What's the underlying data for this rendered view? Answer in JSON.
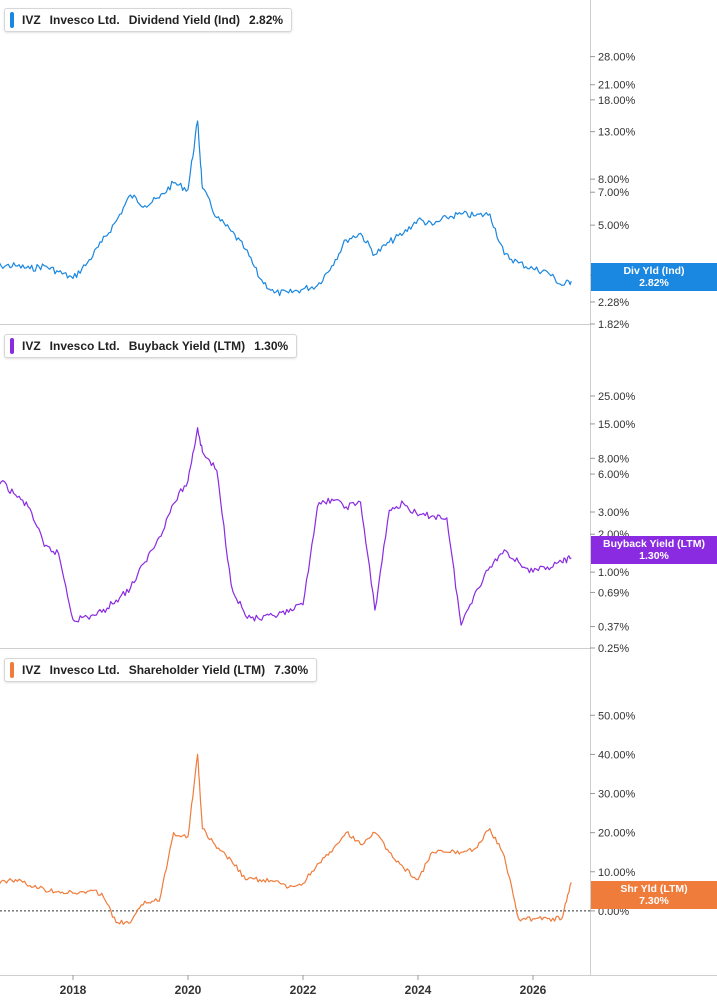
{
  "colors": {
    "div": "#1a87e0",
    "buyback": "#8a2be2",
    "shareholder": "#f07c3c"
  },
  "panels": [
    {
      "ticker": "IVZ",
      "company": "Invesco Ltd.",
      "metric": "Dividend Yield (Ind)",
      "value": "2.82%",
      "flag_line1": "Div Yld (Ind)",
      "flag_line2": "2.82%"
    },
    {
      "ticker": "IVZ",
      "company": "Invesco Ltd.",
      "metric": "Buyback Yield (LTM)",
      "value": "1.30%",
      "flag_line1": "Buyback Yield (LTM)",
      "flag_line2": "1.30%"
    },
    {
      "ticker": "IVZ",
      "company": "Invesco Ltd.",
      "metric": "Shareholder Yield (LTM)",
      "value": "7.30%",
      "flag_line1": "Shr Yld (LTM)",
      "flag_line2": "7.30%"
    }
  ],
  "chart_data": [
    {
      "type": "line",
      "title": "IVZ Invesco Ltd. Dividend Yield (Ind) 2.82%",
      "scale": "log",
      "ylim": [
        1.82,
        36
      ],
      "y_ticks": [
        "28.00%",
        "21.00%",
        "18.00%",
        "13.00%",
        "8.00%",
        "7.00%",
        "5.00%",
        "3.00%",
        "2.28%",
        "1.82%"
      ],
      "y_tick_values": [
        28,
        21,
        18,
        13,
        8,
        7,
        5,
        3,
        2.28,
        1.82
      ],
      "x": [
        "2016-07",
        "2016-10",
        "2017-01",
        "2017-04",
        "2017-07",
        "2017-10",
        "2018-01",
        "2018-04",
        "2018-07",
        "2018-10",
        "2019-01",
        "2019-04",
        "2019-07",
        "2019-10",
        "2020-01",
        "2020-03",
        "2020-04",
        "2020-07",
        "2020-10",
        "2021-01",
        "2021-04",
        "2021-07",
        "2021-10",
        "2022-01",
        "2022-04",
        "2022-07",
        "2022-10",
        "2023-01",
        "2023-04",
        "2023-07",
        "2023-10",
        "2024-01",
        "2024-04",
        "2024-07",
        "2024-10",
        "2025-01",
        "2025-04",
        "2025-07",
        "2025-10",
        "2026-01",
        "2026-04",
        "2026-07",
        "2026-09"
      ],
      "values": [
        3.4,
        3.3,
        3.3,
        3.2,
        3.3,
        3.1,
        2.9,
        3.4,
        4.2,
        5.2,
        6.8,
        6.1,
        6.6,
        7.7,
        7.2,
        14.5,
        7.3,
        5.4,
        4.7,
        3.9,
        2.9,
        2.5,
        2.5,
        2.6,
        2.7,
        3.3,
        4.3,
        4.6,
        3.7,
        4.2,
        4.6,
        5.3,
        5.0,
        5.4,
        5.6,
        5.5,
        5.6,
        3.7,
        3.4,
        3.2,
        3.1,
        2.7,
        2.82
      ],
      "series": [
        {
          "name": "Div Yld (Ind)",
          "color": "#1a87e0"
        }
      ],
      "grid": false
    },
    {
      "type": "line",
      "title": "IVZ Invesco Ltd. Buyback Yield (LTM) 1.30%",
      "scale": "log",
      "ylim": [
        0.25,
        36
      ],
      "y_ticks": [
        "25.00%",
        "15.00%",
        "8.00%",
        "6.00%",
        "3.00%",
        "2.00%",
        "1.00%",
        "0.69%",
        "0.37%",
        "0.25%"
      ],
      "y_tick_values": [
        25,
        15,
        8,
        6,
        3,
        2,
        1,
        0.69,
        0.37,
        0.25
      ],
      "x": [
        "2016-07",
        "2016-10",
        "2017-01",
        "2017-04",
        "2017-07",
        "2017-10",
        "2018-01",
        "2018-04",
        "2018-07",
        "2018-10",
        "2019-01",
        "2019-04",
        "2019-07",
        "2019-10",
        "2020-01",
        "2020-03",
        "2020-04",
        "2020-07",
        "2020-10",
        "2021-01",
        "2021-04",
        "2021-07",
        "2021-10",
        "2022-01",
        "2022-04",
        "2022-07",
        "2022-10",
        "2023-01",
        "2023-04",
        "2023-07",
        "2023-10",
        "2024-01",
        "2024-04",
        "2024-07",
        "2024-10",
        "2025-01",
        "2025-04",
        "2025-07",
        "2025-10",
        "2026-01",
        "2026-04",
        "2026-07",
        "2026-09"
      ],
      "values": [
        5.5,
        5.2,
        4.1,
        3.2,
        1.6,
        1.4,
        0.42,
        0.44,
        0.48,
        0.6,
        0.75,
        1.2,
        1.9,
        3.5,
        5.3,
        14.0,
        9.0,
        6.4,
        0.8,
        0.45,
        0.42,
        0.45,
        0.48,
        0.55,
        3.3,
        3.8,
        3.3,
        3.6,
        0.5,
        3.1,
        3.5,
        2.8,
        2.8,
        2.7,
        0.38,
        0.7,
        1.1,
        1.5,
        1.2,
        1.0,
        1.1,
        1.2,
        1.3
      ],
      "series": [
        {
          "name": "Buyback Yield (LTM)",
          "color": "#8a2be2"
        }
      ],
      "grid": false
    },
    {
      "type": "line",
      "title": "IVZ Invesco Ltd. Shareholder Yield (LTM) 7.30%",
      "scale": "linear",
      "ylim": [
        -10,
        58
      ],
      "y_ticks": [
        "50.00%",
        "40.00%",
        "30.00%",
        "20.00%",
        "10.00%",
        "0.00%"
      ],
      "y_tick_values": [
        50,
        40,
        30,
        20,
        10,
        0
      ],
      "x": [
        "2016-07",
        "2016-10",
        "2017-01",
        "2017-04",
        "2017-07",
        "2017-10",
        "2018-01",
        "2018-04",
        "2018-07",
        "2018-10",
        "2019-01",
        "2019-04",
        "2019-07",
        "2019-10",
        "2020-01",
        "2020-03",
        "2020-04",
        "2020-07",
        "2020-10",
        "2021-01",
        "2021-04",
        "2021-07",
        "2021-10",
        "2022-01",
        "2022-04",
        "2022-07",
        "2022-10",
        "2023-01",
        "2023-04",
        "2023-07",
        "2023-10",
        "2024-01",
        "2024-04",
        "2024-07",
        "2024-10",
        "2025-01",
        "2025-04",
        "2025-07",
        "2025-10",
        "2026-01",
        "2026-04",
        "2026-07",
        "2026-09"
      ],
      "values": [
        5.5,
        7.5,
        8.0,
        6.5,
        5.5,
        5.0,
        4.5,
        5.0,
        4.5,
        -3.0,
        -3.0,
        2.5,
        2.5,
        20.0,
        19.0,
        40.0,
        21.0,
        16.0,
        13.0,
        8.0,
        8.0,
        7.5,
        6.0,
        7.0,
        12.0,
        15.0,
        20.0,
        17.0,
        20.0,
        15.0,
        11.0,
        8.0,
        15.0,
        15.0,
        15.0,
        16.0,
        21.0,
        14.0,
        -2.0,
        -2.0,
        -2.0,
        -2.0,
        7.3
      ],
      "zero_line": true,
      "series": [
        {
          "name": "Shr Yld (LTM)",
          "color": "#f07c3c"
        }
      ],
      "grid": false
    }
  ],
  "x_axis": {
    "ticks": [
      "2018",
      "2020",
      "2022",
      "2024",
      "2026"
    ]
  }
}
